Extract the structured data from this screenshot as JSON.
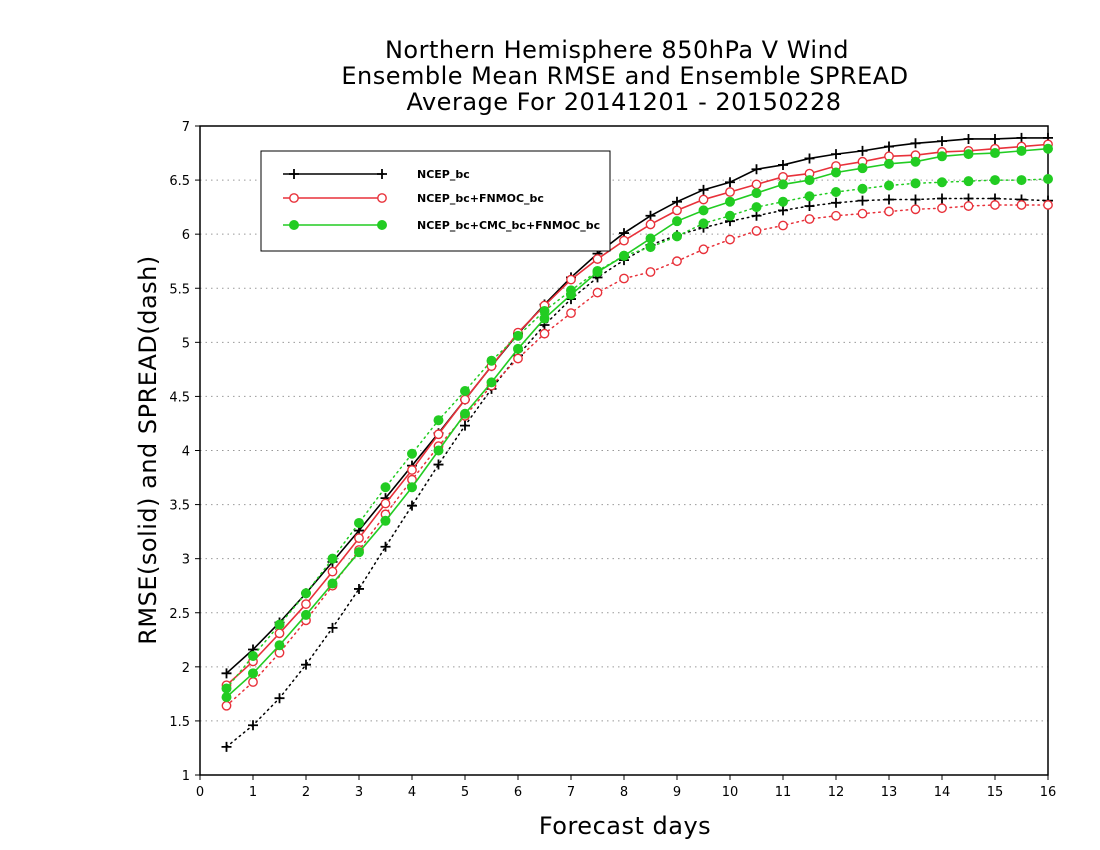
{
  "chart_data": {
    "type": "line",
    "title_lines": [
      "Northern Hemisphere 850hPa V Wind",
      "Ensemble Mean RMSE and Ensemble SPREAD",
      "Average For 20141201 - 20150228"
    ],
    "xlabel": "Forecast days",
    "ylabel": "RMSE(solid) and SPREAD(dash)",
    "xlim": [
      0,
      16
    ],
    "ylim": [
      1,
      7
    ],
    "x_ticks": [
      0,
      1,
      2,
      3,
      4,
      5,
      6,
      7,
      8,
      9,
      10,
      11,
      12,
      13,
      14,
      15,
      16
    ],
    "y_ticks": [
      1,
      1.5,
      2,
      2.5,
      3,
      3.5,
      4,
      4.5,
      5,
      5.5,
      6,
      6.5,
      7
    ],
    "grid": "horizontal dotted",
    "legend_position": "top-left",
    "x": [
      0.5,
      1,
      1.5,
      2,
      2.5,
      3,
      3.5,
      4,
      4.5,
      5,
      5.5,
      6,
      6.5,
      7,
      7.5,
      8,
      8.5,
      9,
      9.5,
      10,
      10.5,
      11,
      11.5,
      12,
      12.5,
      13,
      13.5,
      14,
      14.5,
      15,
      15.5,
      16
    ],
    "series": [
      {
        "name": "NCEP_bc",
        "color": "#000000",
        "marker": "plus",
        "rmse": [
          1.94,
          2.16,
          2.41,
          2.68,
          2.97,
          3.26,
          3.56,
          3.86,
          4.16,
          4.47,
          4.78,
          5.08,
          5.35,
          5.6,
          5.82,
          6.01,
          6.17,
          6.3,
          6.41,
          6.48,
          6.6,
          6.64,
          6.7,
          6.74,
          6.77,
          6.81,
          6.84,
          6.86,
          6.88,
          6.88,
          6.89,
          6.89
        ],
        "spread": [
          1.26,
          1.46,
          1.71,
          2.02,
          2.36,
          2.72,
          3.11,
          3.49,
          3.87,
          4.23,
          4.57,
          4.88,
          5.16,
          5.4,
          5.6,
          5.76,
          5.9,
          5.99,
          6.06,
          6.12,
          6.17,
          6.22,
          6.26,
          6.29,
          6.31,
          6.32,
          6.32,
          6.33,
          6.33,
          6.33,
          6.32,
          6.31
        ]
      },
      {
        "name": "NCEP_bc+FNMOC_bc",
        "color": "#e8313a",
        "marker": "open-circle",
        "rmse": [
          1.83,
          2.05,
          2.31,
          2.58,
          2.88,
          3.19,
          3.51,
          3.82,
          4.15,
          4.47,
          4.78,
          5.09,
          5.34,
          5.58,
          5.77,
          5.94,
          6.09,
          6.22,
          6.32,
          6.39,
          6.46,
          6.53,
          6.56,
          6.63,
          6.67,
          6.72,
          6.73,
          6.76,
          6.77,
          6.79,
          6.81,
          6.83
        ],
        "spread": [
          1.64,
          1.86,
          2.13,
          2.43,
          2.75,
          3.08,
          3.41,
          3.73,
          4.04,
          4.32,
          4.6,
          4.85,
          5.08,
          5.27,
          5.46,
          5.59,
          5.65,
          5.75,
          5.86,
          5.95,
          6.03,
          6.08,
          6.14,
          6.17,
          6.19,
          6.21,
          6.23,
          6.24,
          6.26,
          6.27,
          6.27,
          6.27
        ]
      },
      {
        "name": "NCEP_bc+CMC_bc+FNMOC_bc",
        "color": "#22cc22",
        "marker": "filled-circle",
        "rmse": [
          1.72,
          1.94,
          2.2,
          2.48,
          2.77,
          3.06,
          3.35,
          3.66,
          4.0,
          4.34,
          4.63,
          4.94,
          5.22,
          5.44,
          5.65,
          5.8,
          5.96,
          6.12,
          6.22,
          6.3,
          6.38,
          6.46,
          6.5,
          6.57,
          6.61,
          6.65,
          6.67,
          6.72,
          6.74,
          6.75,
          6.77,
          6.79
        ],
        "spread": [
          1.8,
          2.1,
          2.39,
          2.68,
          3.0,
          3.33,
          3.66,
          3.97,
          4.28,
          4.55,
          4.83,
          5.06,
          5.29,
          5.48,
          5.66,
          5.8,
          5.88,
          5.98,
          6.1,
          6.17,
          6.25,
          6.3,
          6.35,
          6.39,
          6.42,
          6.45,
          6.47,
          6.48,
          6.49,
          6.5,
          6.5,
          6.51
        ]
      }
    ]
  }
}
